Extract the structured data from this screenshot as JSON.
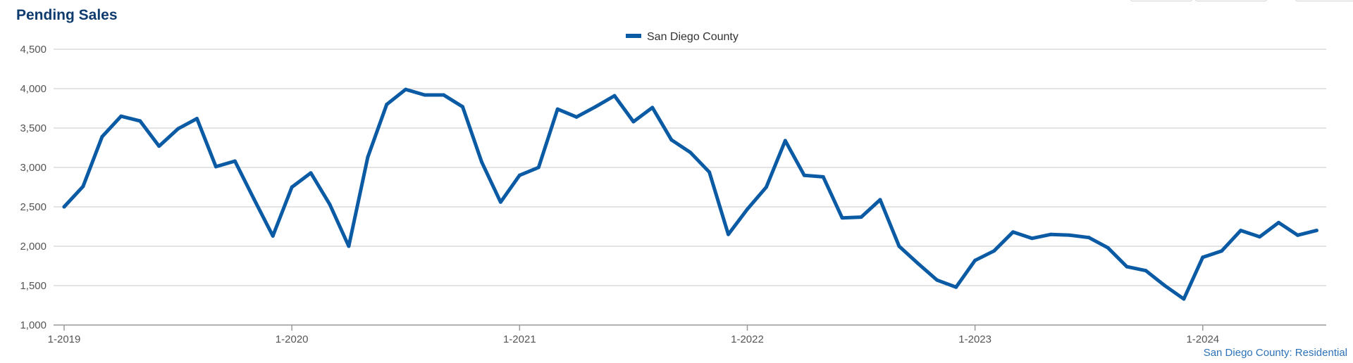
{
  "header": {
    "title": "Pending Sales"
  },
  "footer": {
    "source": "San Diego County: Residential"
  },
  "colors": {
    "series": "#0b5aa4",
    "title": "#0f3c6e",
    "grid": "#c8c8c8",
    "source": "#2d72b8"
  },
  "chart_data": {
    "type": "line",
    "title": "Pending Sales",
    "xlabel": "",
    "ylabel": "",
    "ylim": [
      1000,
      4500
    ],
    "yticks": [
      1000,
      1500,
      2000,
      2500,
      3000,
      3500,
      4000,
      4500
    ],
    "ytick_labels": [
      "1,000",
      "1,500",
      "2,000",
      "2,500",
      "3,000",
      "3,500",
      "4,000",
      "4,500"
    ],
    "xtick_labels": [
      "1-2019",
      "1-2020",
      "1-2021",
      "1-2022",
      "1-2023",
      "1-2024"
    ],
    "grid": true,
    "legend": "top-center",
    "x": [
      "1-2019",
      "2-2019",
      "3-2019",
      "4-2019",
      "5-2019",
      "6-2019",
      "7-2019",
      "8-2019",
      "9-2019",
      "10-2019",
      "11-2019",
      "12-2019",
      "1-2020",
      "2-2020",
      "3-2020",
      "4-2020",
      "5-2020",
      "6-2020",
      "7-2020",
      "8-2020",
      "9-2020",
      "10-2020",
      "11-2020",
      "12-2020",
      "1-2021",
      "2-2021",
      "3-2021",
      "4-2021",
      "5-2021",
      "6-2021",
      "7-2021",
      "8-2021",
      "9-2021",
      "10-2021",
      "11-2021",
      "12-2021",
      "1-2022",
      "2-2022",
      "3-2022",
      "4-2022",
      "5-2022",
      "6-2022",
      "7-2022",
      "8-2022",
      "9-2022",
      "10-2022",
      "11-2022",
      "12-2022",
      "1-2023",
      "2-2023",
      "3-2023",
      "4-2023",
      "5-2023",
      "6-2023",
      "7-2023",
      "8-2023",
      "9-2023",
      "10-2023",
      "11-2023",
      "12-2023",
      "1-2024",
      "2-2024",
      "3-2024",
      "4-2024",
      "5-2024",
      "6-2024",
      "7-2024"
    ],
    "series": [
      {
        "name": "San Diego County",
        "values": [
          2500,
          2760,
          3390,
          3650,
          3590,
          3270,
          3490,
          3620,
          3010,
          3080,
          2600,
          2130,
          2750,
          2930,
          2530,
          2000,
          3130,
          3800,
          3990,
          3920,
          3920,
          3770,
          3070,
          2560,
          2900,
          3000,
          3740,
          3640,
          3770,
          3910,
          3580,
          3760,
          3350,
          3190,
          2940,
          2150,
          2470,
          2750,
          3340,
          2900,
          2880,
          2360,
          2370,
          2590,
          2000,
          1780,
          1570,
          1480,
          1820,
          1940,
          2180,
          2100,
          2150,
          2140,
          2110,
          1980,
          1740,
          1690,
          1500,
          1330,
          1860,
          1940,
          2200,
          2120,
          2300,
          2140,
          2200
        ]
      }
    ]
  }
}
